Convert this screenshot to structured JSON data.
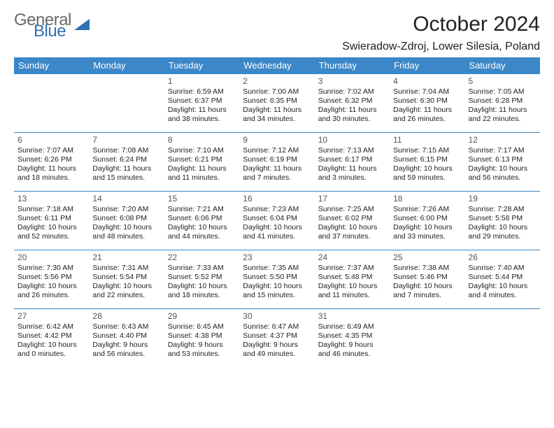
{
  "brand": {
    "word1": "General",
    "word2": "Blue"
  },
  "title": "October 2024",
  "location": "Swieradow-Zdroj, Lower Silesia, Poland",
  "colors": {
    "header_bg": "#3b87c8",
    "header_text": "#ffffff",
    "rule": "#3b87c8",
    "logo_gray": "#6a6a6a",
    "logo_blue": "#2f6fb3",
    "page_bg": "#ffffff",
    "body_text": "#222222"
  },
  "typography": {
    "title_fontsize": 30,
    "location_fontsize": 16,
    "header_fontsize": 13,
    "daynum_fontsize": 12,
    "cell_fontsize": 10.5
  },
  "dayNames": [
    "Sunday",
    "Monday",
    "Tuesday",
    "Wednesday",
    "Thursday",
    "Friday",
    "Saturday"
  ],
  "weeks": [
    [
      null,
      null,
      {
        "n": "1",
        "sr": "6:59 AM",
        "ss": "6:37 PM",
        "dl": "11 hours and 38 minutes."
      },
      {
        "n": "2",
        "sr": "7:00 AM",
        "ss": "6:35 PM",
        "dl": "11 hours and 34 minutes."
      },
      {
        "n": "3",
        "sr": "7:02 AM",
        "ss": "6:32 PM",
        "dl": "11 hours and 30 minutes."
      },
      {
        "n": "4",
        "sr": "7:04 AM",
        "ss": "6:30 PM",
        "dl": "11 hours and 26 minutes."
      },
      {
        "n": "5",
        "sr": "7:05 AM",
        "ss": "6:28 PM",
        "dl": "11 hours and 22 minutes."
      }
    ],
    [
      {
        "n": "6",
        "sr": "7:07 AM",
        "ss": "6:26 PM",
        "dl": "11 hours and 18 minutes."
      },
      {
        "n": "7",
        "sr": "7:08 AM",
        "ss": "6:24 PM",
        "dl": "11 hours and 15 minutes."
      },
      {
        "n": "8",
        "sr": "7:10 AM",
        "ss": "6:21 PM",
        "dl": "11 hours and 11 minutes."
      },
      {
        "n": "9",
        "sr": "7:12 AM",
        "ss": "6:19 PM",
        "dl": "11 hours and 7 minutes."
      },
      {
        "n": "10",
        "sr": "7:13 AM",
        "ss": "6:17 PM",
        "dl": "11 hours and 3 minutes."
      },
      {
        "n": "11",
        "sr": "7:15 AM",
        "ss": "6:15 PM",
        "dl": "10 hours and 59 minutes."
      },
      {
        "n": "12",
        "sr": "7:17 AM",
        "ss": "6:13 PM",
        "dl": "10 hours and 56 minutes."
      }
    ],
    [
      {
        "n": "13",
        "sr": "7:18 AM",
        "ss": "6:11 PM",
        "dl": "10 hours and 52 minutes."
      },
      {
        "n": "14",
        "sr": "7:20 AM",
        "ss": "6:08 PM",
        "dl": "10 hours and 48 minutes."
      },
      {
        "n": "15",
        "sr": "7:21 AM",
        "ss": "6:06 PM",
        "dl": "10 hours and 44 minutes."
      },
      {
        "n": "16",
        "sr": "7:23 AM",
        "ss": "6:04 PM",
        "dl": "10 hours and 41 minutes."
      },
      {
        "n": "17",
        "sr": "7:25 AM",
        "ss": "6:02 PM",
        "dl": "10 hours and 37 minutes."
      },
      {
        "n": "18",
        "sr": "7:26 AM",
        "ss": "6:00 PM",
        "dl": "10 hours and 33 minutes."
      },
      {
        "n": "19",
        "sr": "7:28 AM",
        "ss": "5:58 PM",
        "dl": "10 hours and 29 minutes."
      }
    ],
    [
      {
        "n": "20",
        "sr": "7:30 AM",
        "ss": "5:56 PM",
        "dl": "10 hours and 26 minutes."
      },
      {
        "n": "21",
        "sr": "7:31 AM",
        "ss": "5:54 PM",
        "dl": "10 hours and 22 minutes."
      },
      {
        "n": "22",
        "sr": "7:33 AM",
        "ss": "5:52 PM",
        "dl": "10 hours and 18 minutes."
      },
      {
        "n": "23",
        "sr": "7:35 AM",
        "ss": "5:50 PM",
        "dl": "10 hours and 15 minutes."
      },
      {
        "n": "24",
        "sr": "7:37 AM",
        "ss": "5:48 PM",
        "dl": "10 hours and 11 minutes."
      },
      {
        "n": "25",
        "sr": "7:38 AM",
        "ss": "5:46 PM",
        "dl": "10 hours and 7 minutes."
      },
      {
        "n": "26",
        "sr": "7:40 AM",
        "ss": "5:44 PM",
        "dl": "10 hours and 4 minutes."
      }
    ],
    [
      {
        "n": "27",
        "sr": "6:42 AM",
        "ss": "4:42 PM",
        "dl": "10 hours and 0 minutes."
      },
      {
        "n": "28",
        "sr": "6:43 AM",
        "ss": "4:40 PM",
        "dl": "9 hours and 56 minutes."
      },
      {
        "n": "29",
        "sr": "6:45 AM",
        "ss": "4:38 PM",
        "dl": "9 hours and 53 minutes."
      },
      {
        "n": "30",
        "sr": "6:47 AM",
        "ss": "4:37 PM",
        "dl": "9 hours and 49 minutes."
      },
      {
        "n": "31",
        "sr": "6:49 AM",
        "ss": "4:35 PM",
        "dl": "9 hours and 46 minutes."
      },
      null,
      null
    ]
  ],
  "labels": {
    "sunrise": "Sunrise:",
    "sunset": "Sunset:",
    "daylight": "Daylight:"
  }
}
